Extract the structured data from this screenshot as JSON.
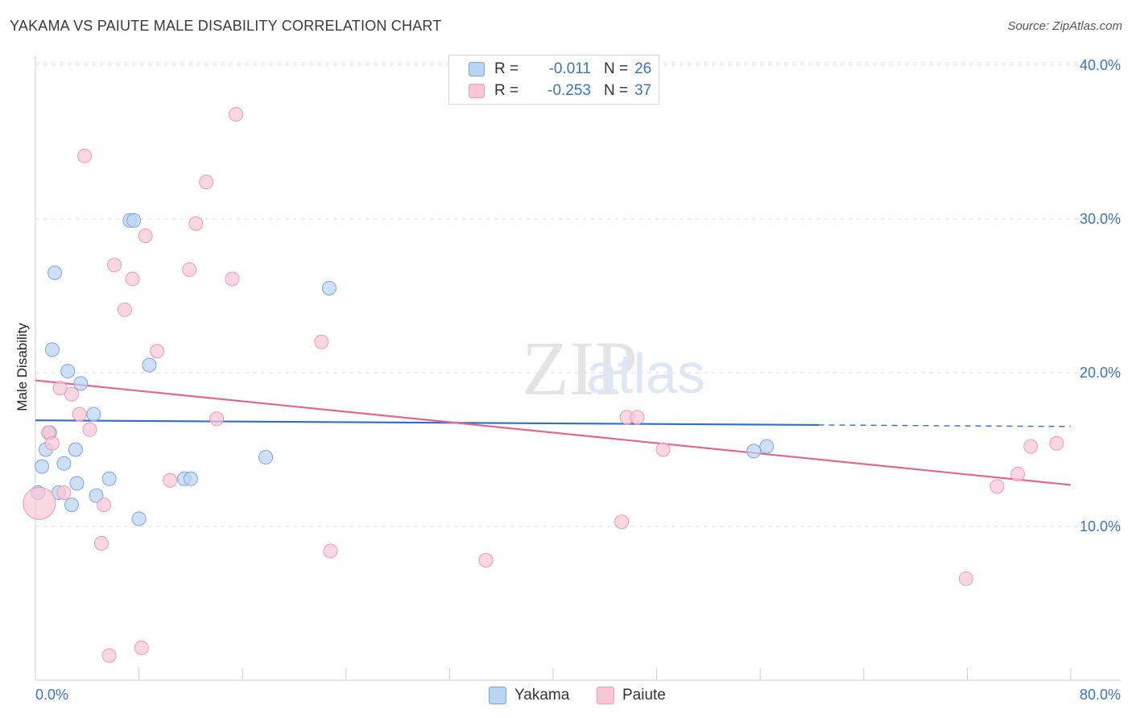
{
  "title": "YAKAMA VS PAIUTE MALE DISABILITY CORRELATION CHART",
  "source": "Source: ZipAtlas.com",
  "watermark": {
    "zip": "ZIP",
    "atlas": "atlas"
  },
  "legend": {
    "rows": [
      {
        "r_label": "R =",
        "r_value": "-0.011",
        "n_label": "N =",
        "n_value": "26"
      },
      {
        "r_label": "R =",
        "r_value": "-0.253",
        "n_label": "N =",
        "n_value": "37"
      }
    ]
  },
  "colors": {
    "yakama_fill": "#b9d3f3",
    "yakama_stroke": "#7aa5de",
    "yakama_line": "#2f6fc9",
    "paiute_fill": "#f9c6d4",
    "paiute_stroke": "#ee9ab3",
    "paiute_line": "#e0678f",
    "axis_text": "#3a74c4",
    "grid": "#dddddd"
  },
  "chart_data": {
    "type": "scatter",
    "title": "YAKAMA VS PAIUTE MALE DISABILITY CORRELATION CHART",
    "xlabel": "",
    "ylabel": "Male Disability",
    "xlim": [
      0,
      80
    ],
    "ylim": [
      0,
      42
    ],
    "x_tick_labels": [
      "0.0%",
      "80.0%"
    ],
    "y_ticks": [
      10,
      20,
      30,
      40
    ],
    "y_tick_labels": [
      "10.0%",
      "20.0%",
      "30.0%",
      "40.0%"
    ],
    "grid": true,
    "series": [
      {
        "name": "Yakama",
        "r": -0.011,
        "n": 26,
        "trend": {
          "x0": 0,
          "y0": 16.9,
          "x1": 60.5,
          "y1": 16.6,
          "dashed_to_x": 80,
          "dashed_to_y": 16.5
        },
        "points": [
          {
            "x": 0.2,
            "y": 12.2
          },
          {
            "x": 0.5,
            "y": 13.9
          },
          {
            "x": 0.8,
            "y": 15.0
          },
          {
            "x": 1.1,
            "y": 16.1
          },
          {
            "x": 1.3,
            "y": 21.5
          },
          {
            "x": 1.5,
            "y": 26.5
          },
          {
            "x": 1.8,
            "y": 12.2
          },
          {
            "x": 2.2,
            "y": 14.1
          },
          {
            "x": 2.5,
            "y": 20.1
          },
          {
            "x": 2.8,
            "y": 11.4
          },
          {
            "x": 3.1,
            "y": 15.0
          },
          {
            "x": 3.2,
            "y": 12.8
          },
          {
            "x": 3.5,
            "y": 19.3
          },
          {
            "x": 4.5,
            "y": 17.3
          },
          {
            "x": 4.7,
            "y": 12.0
          },
          {
            "x": 5.7,
            "y": 13.1
          },
          {
            "x": 7.3,
            "y": 29.9
          },
          {
            "x": 7.6,
            "y": 29.9
          },
          {
            "x": 8.0,
            "y": 10.5
          },
          {
            "x": 8.8,
            "y": 20.5
          },
          {
            "x": 11.5,
            "y": 13.1
          },
          {
            "x": 12.0,
            "y": 13.1
          },
          {
            "x": 17.8,
            "y": 14.5
          },
          {
            "x": 22.7,
            "y": 25.5
          },
          {
            "x": 55.5,
            "y": 14.9
          },
          {
            "x": 56.5,
            "y": 15.2
          }
        ]
      },
      {
        "name": "Paiute",
        "r": -0.253,
        "n": 37,
        "trend": {
          "x0": 0,
          "y0": 19.5,
          "x1": 80,
          "y1": 12.7
        },
        "points": [
          {
            "x": 0.3,
            "y": 11.5
          },
          {
            "x": 1.0,
            "y": 16.1
          },
          {
            "x": 1.3,
            "y": 15.4
          },
          {
            "x": 1.9,
            "y": 19.0
          },
          {
            "x": 2.2,
            "y": 12.2
          },
          {
            "x": 2.8,
            "y": 18.6
          },
          {
            "x": 3.4,
            "y": 17.3
          },
          {
            "x": 3.8,
            "y": 34.1
          },
          {
            "x": 4.2,
            "y": 16.3
          },
          {
            "x": 5.1,
            "y": 8.9
          },
          {
            "x": 5.3,
            "y": 11.4
          },
          {
            "x": 5.7,
            "y": 1.6
          },
          {
            "x": 6.1,
            "y": 27.0
          },
          {
            "x": 6.9,
            "y": 24.1
          },
          {
            "x": 7.5,
            "y": 26.1
          },
          {
            "x": 8.2,
            "y": 2.1
          },
          {
            "x": 8.5,
            "y": 28.9
          },
          {
            "x": 9.4,
            "y": 21.4
          },
          {
            "x": 10.4,
            "y": 13.0
          },
          {
            "x": 11.9,
            "y": 26.7
          },
          {
            "x": 12.4,
            "y": 29.7
          },
          {
            "x": 13.2,
            "y": 32.4
          },
          {
            "x": 14.0,
            "y": 17.0
          },
          {
            "x": 15.2,
            "y": 26.1
          },
          {
            "x": 15.5,
            "y": 36.8
          },
          {
            "x": 22.1,
            "y": 22.0
          },
          {
            "x": 22.8,
            "y": 8.4
          },
          {
            "x": 34.8,
            "y": 7.8
          },
          {
            "x": 45.3,
            "y": 10.3
          },
          {
            "x": 45.7,
            "y": 17.1
          },
          {
            "x": 46.5,
            "y": 17.1
          },
          {
            "x": 48.5,
            "y": 15.0
          },
          {
            "x": 71.9,
            "y": 6.6
          },
          {
            "x": 74.3,
            "y": 12.6
          },
          {
            "x": 75.9,
            "y": 13.4
          },
          {
            "x": 76.9,
            "y": 15.2
          },
          {
            "x": 78.9,
            "y": 15.4
          }
        ]
      }
    ]
  }
}
